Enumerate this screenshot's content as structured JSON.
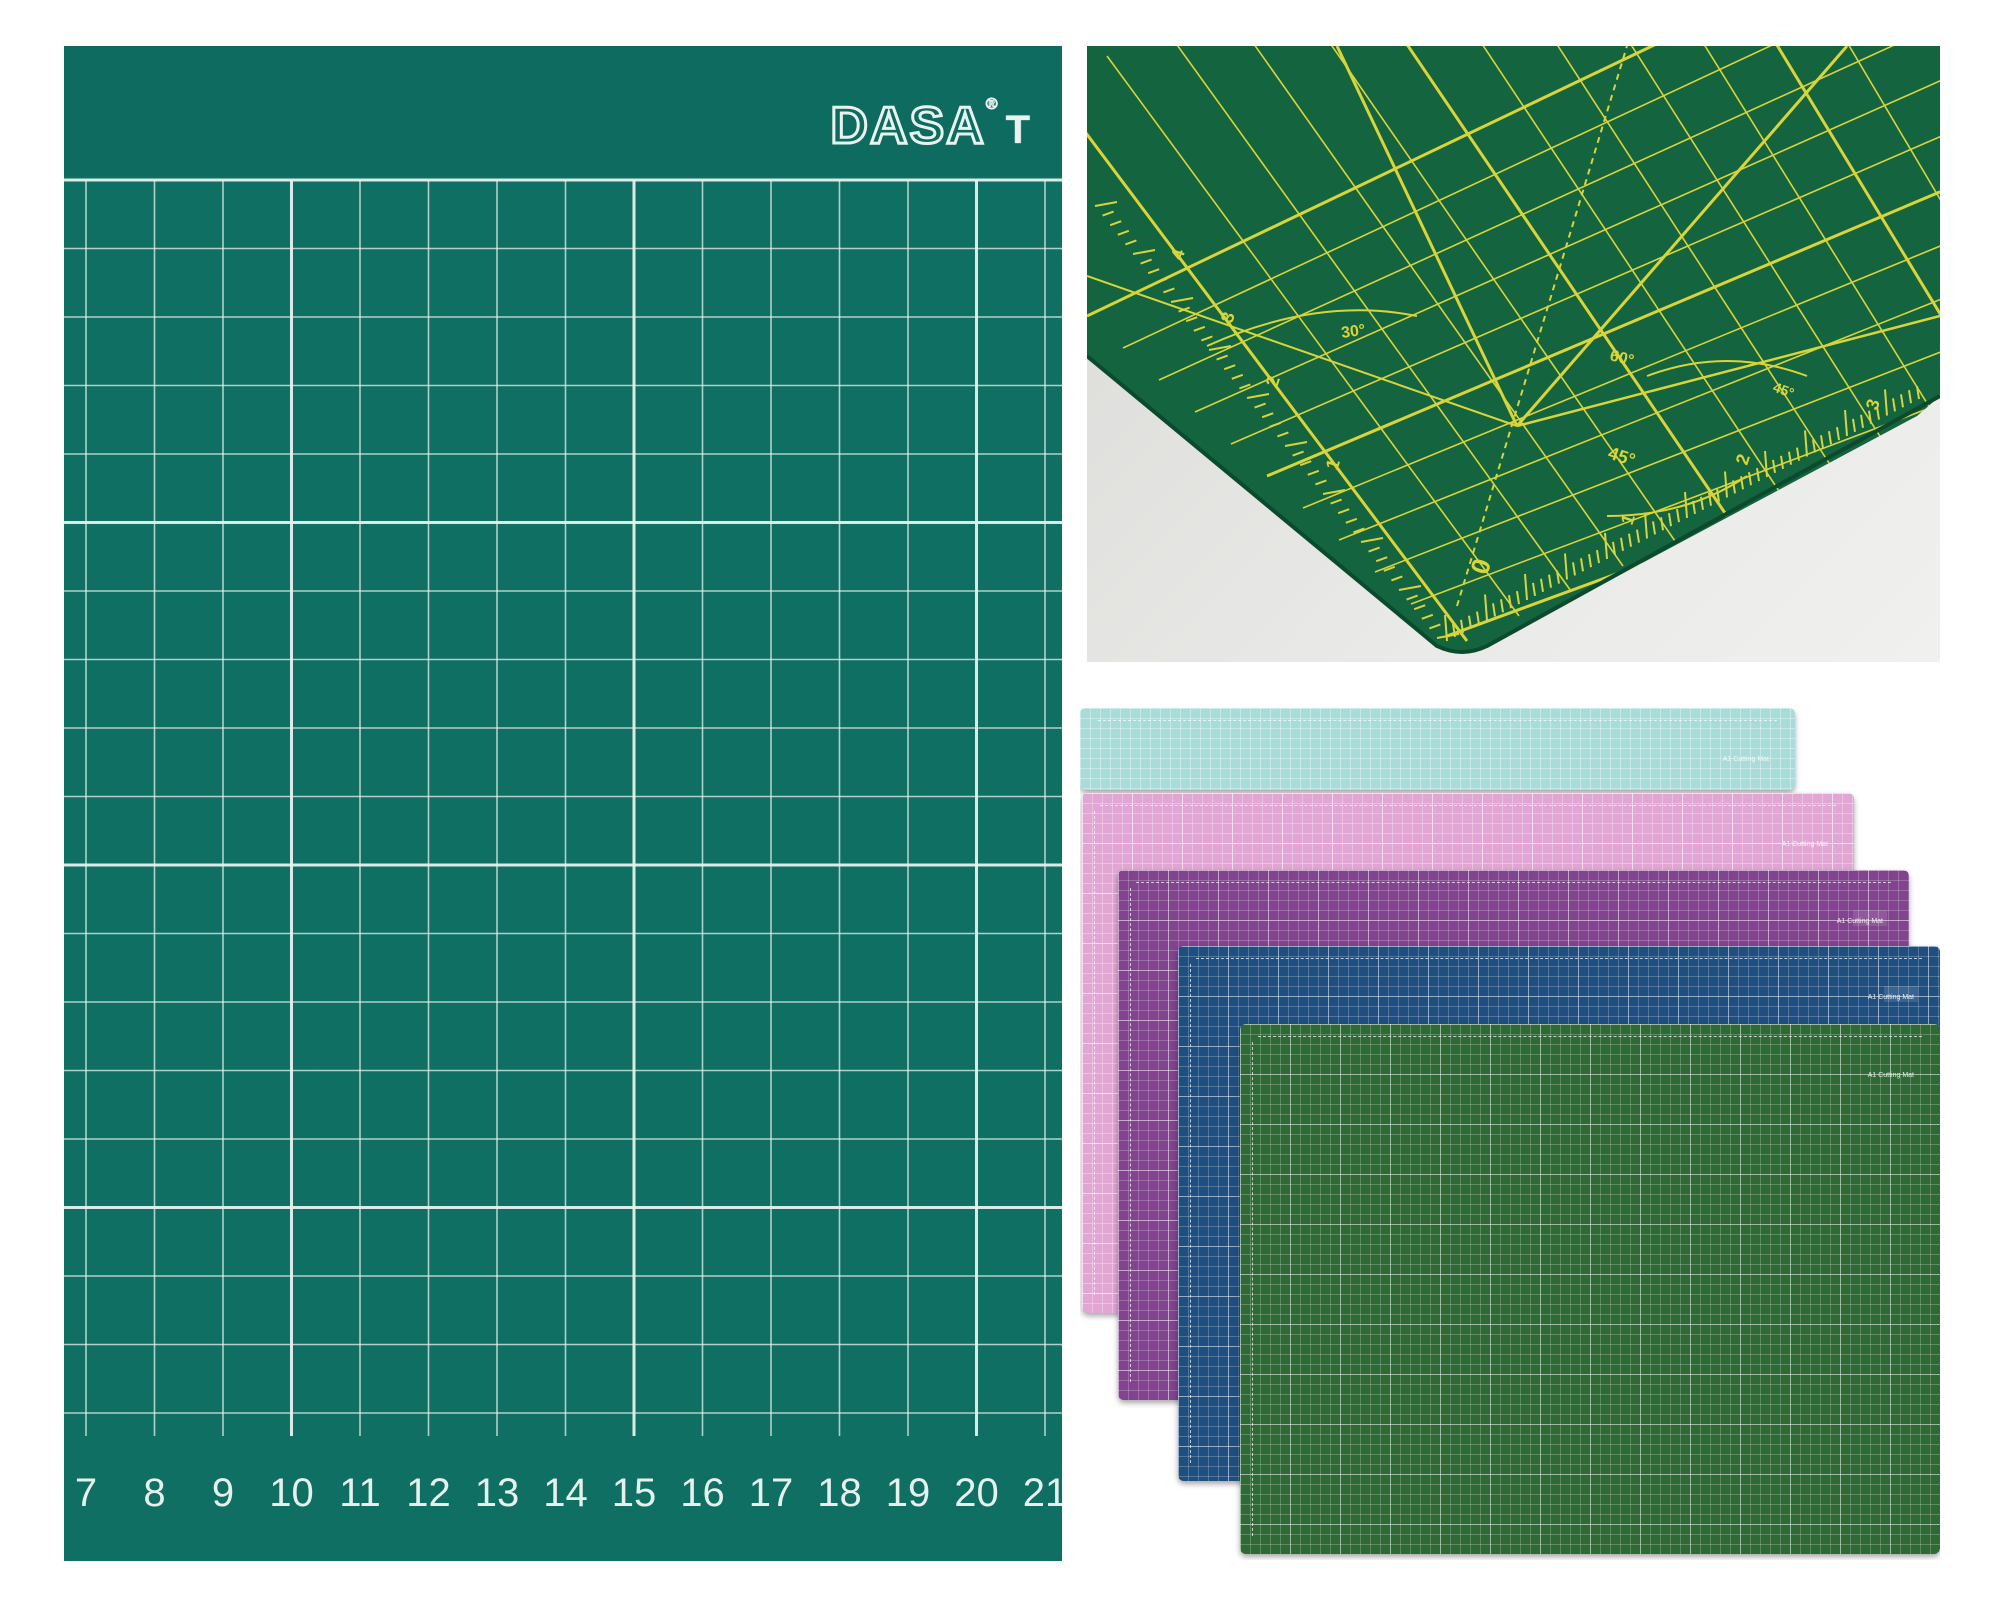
{
  "left_mat": {
    "logo_text": "DASA",
    "logo_mark": "®",
    "logo_tail": "T",
    "bottom_scale": [
      "7",
      "8",
      "9",
      "10",
      "11",
      "12",
      "13",
      "14",
      "15",
      "16",
      "17",
      "18",
      "19",
      "20",
      "21"
    ],
    "colors": {
      "mat": "#0e6f62",
      "lines": "#e6f1ee"
    }
  },
  "photo_mat": {
    "angle_labels": [
      "30°",
      "60°",
      "45°",
      "45°"
    ],
    "scale_left": [
      "4",
      "3",
      "2",
      "1",
      "0"
    ],
    "scale_bottom": [
      "1",
      "2",
      "3"
    ],
    "colors": {
      "mat": "#13633f",
      "lines": "#d9d43a",
      "surface": "#e4e4e2"
    }
  },
  "stack": {
    "mats": [
      {
        "name": "mint",
        "color": "#a7dcd9"
      },
      {
        "name": "pink",
        "color": "#e2a6d4"
      },
      {
        "name": "purple",
        "color": "#82438f"
      },
      {
        "name": "blue",
        "color": "#1f4f80"
      },
      {
        "name": "green",
        "color": "#2f6a36"
      }
    ],
    "corner_label": "A1 Cutting Mat"
  }
}
